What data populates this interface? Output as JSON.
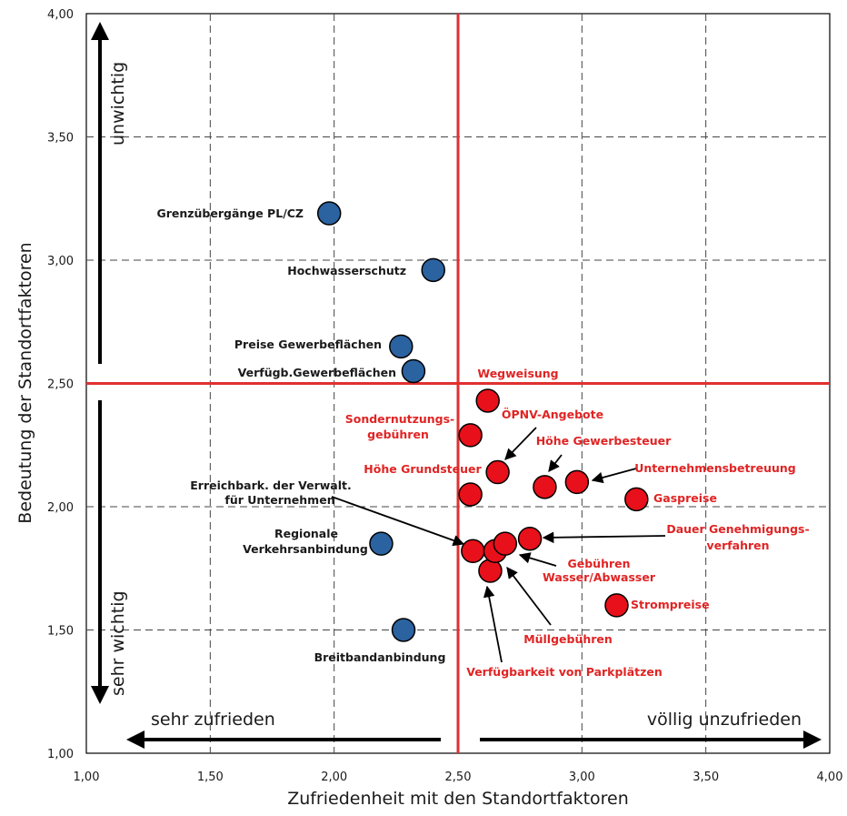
{
  "chart_data": {
    "type": "scatter",
    "title": "",
    "xlabel": "Zufriedenheit mit den Standortfaktoren",
    "ylabel": "Bedeutung der Standortfaktoren",
    "xlim": [
      1.0,
      4.0
    ],
    "ylim": [
      1.0,
      4.0
    ],
    "x_ticks": [
      "1,00",
      "1,50",
      "2,00",
      "2,50",
      "3,00",
      "3,50",
      "4,00"
    ],
    "y_ticks": [
      "1,00",
      "1,50",
      "2,00",
      "2,50",
      "3,00",
      "3,50",
      "4,00"
    ],
    "grid": true,
    "grid_style": "dashed",
    "reference_lines": {
      "x": 2.5,
      "y": 2.5,
      "color": "#e03030"
    },
    "corner_labels": {
      "top": "unwichtig",
      "bottom": "sehr wichtig",
      "left": "sehr zufrieden",
      "right": "völlig unzufrieden"
    },
    "colors": {
      "blue": "#2b62a0",
      "red": "#e8101a",
      "red_text": "#e02424"
    },
    "points": [
      {
        "label": "Grenzübergänge PL/CZ",
        "x": 1.98,
        "y": 3.19,
        "group": "blue"
      },
      {
        "label": "Hochwasserschutz",
        "x": 2.4,
        "y": 2.96,
        "group": "blue"
      },
      {
        "label": "Preise Gewerbeflächen",
        "x": 2.27,
        "y": 2.65,
        "group": "blue"
      },
      {
        "label": "Verfügb.Gewerbeflächen",
        "x": 2.32,
        "y": 2.55,
        "group": "blue"
      },
      {
        "label": "Regionale Verkehrsanbindung",
        "x": 2.19,
        "y": 1.85,
        "group": "blue"
      },
      {
        "label": "Breitbandanbindung",
        "x": 2.28,
        "y": 1.5,
        "group": "blue"
      },
      {
        "label": "Wegweisung",
        "x": 2.62,
        "y": 2.43,
        "group": "red"
      },
      {
        "label": "Sondernutzungsgebühren",
        "x": 2.55,
        "y": 2.29,
        "group": "red"
      },
      {
        "label": "ÖPNV-Angebote",
        "x": 2.66,
        "y": 2.14,
        "group": "red"
      },
      {
        "label": "Höhe Grundsteuer",
        "x": 2.55,
        "y": 2.05,
        "group": "red"
      },
      {
        "label": "Höhe Gewerbesteuer",
        "x": 2.85,
        "y": 2.08,
        "group": "red"
      },
      {
        "label": "Unternehmensbetreuung",
        "x": 2.98,
        "y": 2.1,
        "group": "red"
      },
      {
        "label": "Gaspreise",
        "x": 3.22,
        "y": 2.03,
        "group": "red"
      },
      {
        "label": "Erreichbark. der Verwalt. für Unternehmen",
        "x": 2.56,
        "y": 1.82,
        "group": "red"
      },
      {
        "label": "Verfügbarkeit von Parkplätzen",
        "x": 2.63,
        "y": 1.74,
        "group": "red"
      },
      {
        "label": "Müllgebühren",
        "x": 2.65,
        "y": 1.82,
        "group": "red"
      },
      {
        "label": "Gebühren Wasser/Abwasser",
        "x": 2.69,
        "y": 1.85,
        "group": "red"
      },
      {
        "label": "Dauer Genehmigungsverfahren",
        "x": 2.79,
        "y": 1.87,
        "group": "red"
      },
      {
        "label": "Strompreise",
        "x": 3.14,
        "y": 1.6,
        "group": "red"
      }
    ],
    "label_text": {
      "grenz": "Grenzübergänge PL/CZ",
      "hochwasser": "Hochwasserschutz",
      "preise": "Preise Gewerbeflächen",
      "verfuegb": "Verfügb.Gewerbeflächen",
      "regionale_1": "Regionale",
      "regionale_2": "Verkehrsanbindung",
      "breitband": "Breitbandanbindung",
      "wegweisung": "Wegweisung",
      "sonder_1": "Sondernutzungs-",
      "sonder_2": "gebühren",
      "oepnv": "ÖPNV-Angebote",
      "grundsteuer": "Höhe Grundsteuer",
      "gewerbesteuer": "Höhe Gewerbesteuer",
      "unternehmens": "Unternehmensbetreuung",
      "gaspreise": "Gaspreise",
      "erreich_1": "Erreichbark. der Verwalt.",
      "erreich_2": "für Unternehmen",
      "dauer_1": "Dauer Genehmigungs-",
      "dauer_2": "verfahren",
      "gebuehren_1": "Gebühren",
      "gebuehren_2": "Wasser/Abwasser",
      "strom": "Strompreise",
      "muell": "Müllgebühren",
      "parkplaetze": "Verfügbarkeit von Parkplätzen"
    }
  }
}
